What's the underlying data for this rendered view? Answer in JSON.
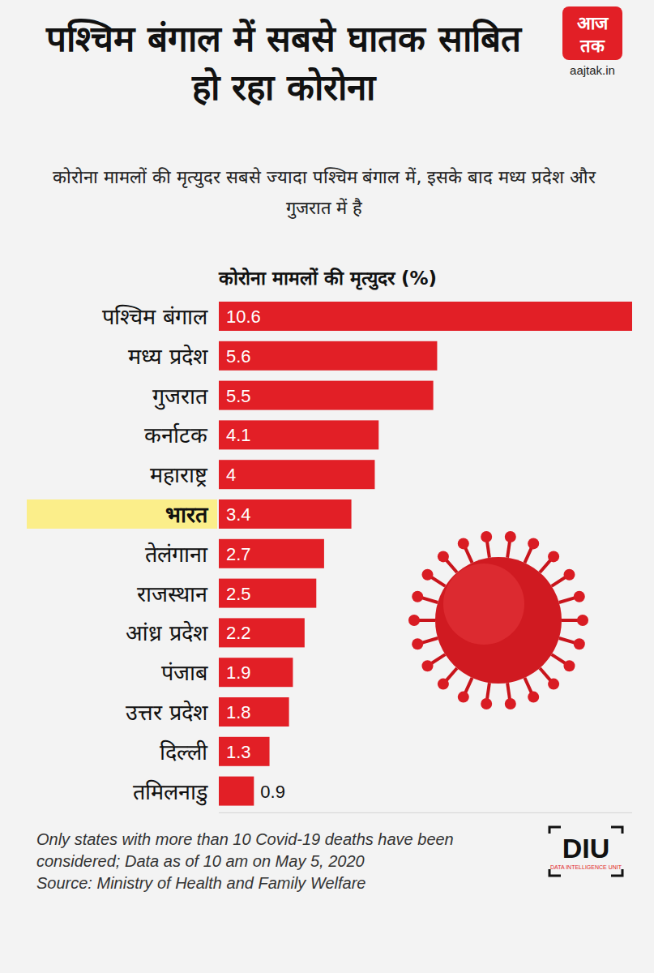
{
  "chart_data": {
    "type": "bar",
    "orientation": "horizontal",
    "title": "पश्चिम बंगाल में सबसे घातक साबित हो रहा कोरोना",
    "subtitle": "कोरोना मामलों की मृत्युदर सबसे ज्यादा पश्चिम बंगाल में, इसके बाद मध्य प्रदेश और गुजरात में है",
    "xlabel": "कोरोना मामलों की मृत्युदर (%)",
    "categories": [
      "पश्चिम बंगाल",
      "मध्य प्रदेश",
      "गुजरात",
      "कर्नाटक",
      "महाराष्ट्र",
      "भारत",
      "तेलंगाना",
      "राजस्थान",
      "आंध्र प्रदेश",
      "पंजाब",
      "उत्तर प्रदेश",
      "दिल्ली",
      "तमिलनाडु"
    ],
    "values": [
      10.6,
      5.6,
      5.5,
      4.1,
      4,
      3.4,
      2.7,
      2.5,
      2.2,
      1.9,
      1.8,
      1.3,
      0.9
    ],
    "color": "#e21f26",
    "highlight": 5,
    "xlim": [
      0,
      10.6
    ],
    "xticks": [],
    "data_labels": true,
    "tick_labels": "y",
    "grid": false,
    "notes": [
      "Only states with more than 10 Covid-19 deaths have been considered; Data as of 10 am on May 5, 2020",
      "Source: Ministry of Health and Family Welfare"
    ]
  },
  "logos": {
    "aajtak": {
      "lines": [
        "आज",
        "तक"
      ],
      "url": "aajtak.in"
    },
    "diu": {
      "name": "DIU",
      "caption": "DATA INTELLIGENCE UNIT"
    }
  }
}
